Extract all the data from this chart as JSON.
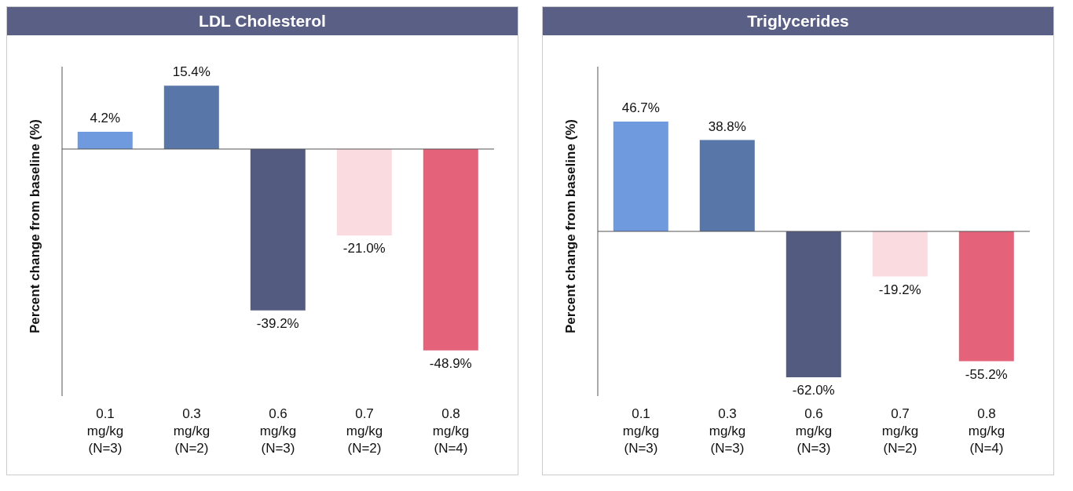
{
  "chart_data": [
    {
      "type": "bar",
      "title": "LDL Cholesterol",
      "ylabel": "Percent change from baseline (%)",
      "categories": [
        "0.1 mg/kg (N=3)",
        "0.3 mg/kg (N=2)",
        "0.6 mg/kg (N=3)",
        "0.7 mg/kg (N=2)",
        "0.8 mg/kg (N=4)"
      ],
      "values": [
        4.2,
        15.4,
        -39.2,
        -21.0,
        -48.9
      ],
      "value_labels": [
        "4.2%",
        "15.4%",
        "-39.2%",
        "-21.0%",
        "-48.9%"
      ],
      "colors": [
        "#6f9ade",
        "#5877a8",
        "#545b80",
        "#f9dbe0",
        "#e5637a"
      ]
    },
    {
      "type": "bar",
      "title": "Triglycerides",
      "ylabel": "Percent change from baseline (%)",
      "categories": [
        "0.1 mg/kg (N=3)",
        "0.3 mg/kg (N=3)",
        "0.6 mg/kg (N=3)",
        "0.7 mg/kg (N=2)",
        "0.8 mg/kg (N=4)"
      ],
      "values": [
        46.7,
        38.8,
        -62.0,
        -19.2,
        -55.2
      ],
      "value_labels": [
        "46.7%",
        "38.8%",
        "-62.0%",
        "-19.2%",
        "-55.2%"
      ],
      "colors": [
        "#6f9ade",
        "#5877a8",
        "#545b80",
        "#f9dbe0",
        "#e5637a"
      ]
    }
  ]
}
